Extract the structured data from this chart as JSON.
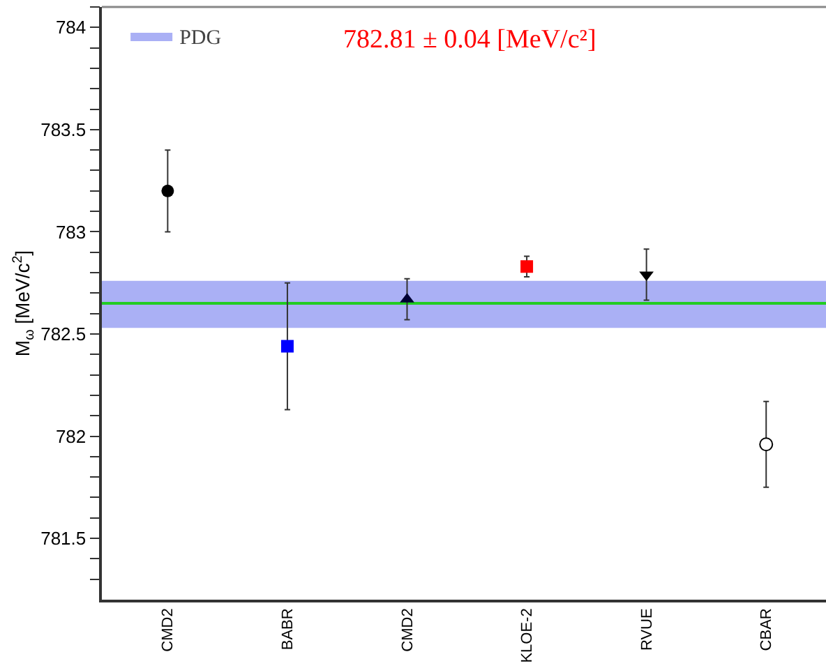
{
  "chart_data": {
    "type": "scatter",
    "ylabel": "M$_{ω}$ [MeV/c$^{2}$]",
    "categories": [
      "CMD2",
      "BABR",
      "CMD2",
      "KLOE-2",
      "RVUE",
      "CBAR"
    ],
    "series": [
      {
        "color": "#000000",
        "marker": "circle",
        "values": [
          783.2,
          null,
          null,
          null,
          null,
          null
        ],
        "errors": [
          0.2,
          null,
          null,
          null,
          null,
          null
        ]
      },
      {
        "color": "#0000ff",
        "marker": "square",
        "values": [
          null,
          782.44,
          null,
          null,
          null,
          null
        ],
        "errors": [
          null,
          0.31,
          null,
          null,
          null,
          null
        ]
      },
      {
        "color": "#000033",
        "marker": "triangle",
        "values": [
          null,
          null,
          782.67,
          null,
          null,
          null
        ],
        "errors": [
          null,
          null,
          0.1,
          null,
          null,
          null
        ]
      },
      {
        "color": "#ff0000",
        "marker": "square",
        "values": [
          null,
          null,
          null,
          782.83,
          null,
          null
        ],
        "errors": [
          null,
          null,
          null,
          0.05,
          null,
          null
        ]
      },
      {
        "color": "#000000",
        "marker": "triangle-down",
        "values": [
          null,
          null,
          null,
          null,
          782.79,
          null
        ],
        "errors": [
          null,
          null,
          null,
          null,
          0.125,
          null
        ]
      },
      {
        "color": "#ffffff",
        "marker": "circle",
        "values": [
          null,
          null,
          null,
          null,
          null,
          781.96
        ],
        "errors": [
          null,
          null,
          null,
          null,
          null,
          0.21
        ]
      }
    ],
    "ylim": [
      781.2,
      784.1
    ],
    "yticks": [
      {
        "value": 781.3,
        "label": null
      },
      {
        "value": 781.4,
        "label": null
      },
      781.5,
      {
        "value": 781.6,
        "label": null
      },
      {
        "value": 781.7,
        "label": null
      },
      {
        "value": 781.8,
        "label": null
      },
      {
        "value": 781.9,
        "label": null
      },
      782,
      {
        "value": 782.1,
        "label": null
      },
      {
        "value": 782.2,
        "label": null
      },
      {
        "value": 782.3,
        "label": null
      },
      {
        "value": 782.4,
        "label": null
      },
      782.5,
      {
        "value": 782.6,
        "label": null
      },
      {
        "value": 782.7,
        "label": null
      },
      {
        "value": 782.8,
        "label": null
      },
      {
        "value": 782.9,
        "label": null
      },
      783,
      {
        "value": 783.1,
        "label": null
      },
      {
        "value": 783.2,
        "label": null
      },
      {
        "value": 783.3,
        "label": null
      },
      {
        "value": 783.4,
        "label": null
      },
      783.5,
      {
        "value": 783.6,
        "label": null
      },
      {
        "value": 783.7,
        "label": null
      },
      {
        "value": 783.8,
        "label": null
      },
      {
        "value": 783.9,
        "label": null
      },
      784,
      {
        "value": 784.1,
        "label": null
      }
    ],
    "bands": [
      {
        "axis": "y",
        "from": 782.53,
        "to": 782.76,
        "label": "PDG",
        "color": "#aab0f5"
      }
    ],
    "ref_lines": [
      {
        "axis": "y",
        "value": 782.65,
        "color": "#22cc22"
      }
    ],
    "annotations": [
      "782.81 ± 0.04 [MeV/c²]"
    ],
    "grid": false,
    "legend": "top left"
  }
}
